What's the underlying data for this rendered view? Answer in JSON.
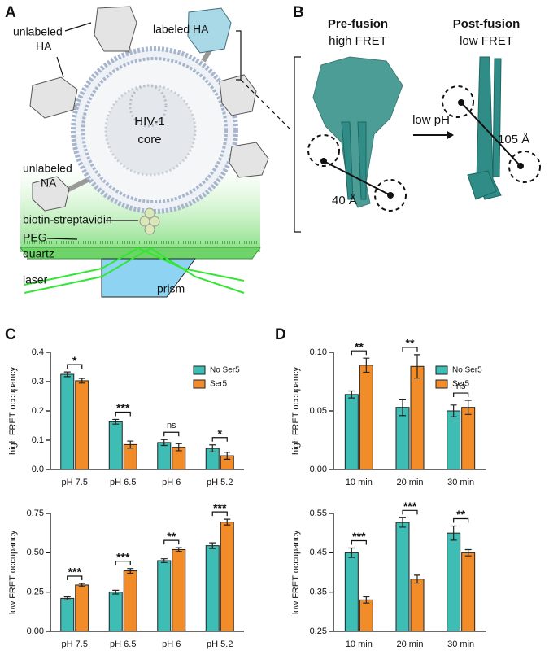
{
  "diagram": {
    "panel_labels": [
      "A",
      "B",
      "C",
      "D"
    ],
    "a": {
      "labeled_ha": "labeled HA",
      "unlabeled_ha": [
        "unlabeled",
        "HA"
      ],
      "core": [
        "HIV-1",
        "core"
      ],
      "unlabeled_na": [
        "unlabeled",
        "NA"
      ],
      "biotin": "biotin-streptavidin",
      "peg": "PEG",
      "quartz": "quartz",
      "laser": "laser",
      "prism": "prism"
    },
    "b": {
      "pre_title": "Pre-fusion",
      "pre_sub": "high FRET",
      "post_title": "Post-fusion",
      "post_sub": "low FRET",
      "pre_distance": "40 Å",
      "condition": "low pH",
      "post_distance": "105 Å"
    }
  },
  "chart_data": [
    {
      "type": "bar",
      "ylabel": "high FRET occupancy",
      "categories": [
        "pH 7.5",
        "pH 6.5",
        "pH 6",
        "pH 5.2"
      ],
      "series": [
        {
          "name": "No Ser5",
          "color": "#3dbdb3",
          "values": [
            0.325,
            0.163,
            0.092,
            0.072
          ],
          "errors": [
            0.008,
            0.008,
            0.01,
            0.012
          ]
        },
        {
          "name": "Ser5",
          "color": "#f28c28",
          "values": [
            0.303,
            0.085,
            0.076,
            0.047
          ],
          "errors": [
            0.008,
            0.012,
            0.012,
            0.012
          ]
        }
      ],
      "ylim": [
        0,
        0.4
      ],
      "yticks": [
        {
          "value": 0,
          "label": "0.0"
        },
        0.1,
        0.2,
        0.3,
        0.4
      ],
      "annotations": [
        "*",
        "***",
        "ns",
        "*"
      ],
      "legend": "upper right"
    },
    {
      "type": "bar",
      "ylabel": "low FRET occupancy",
      "categories": [
        "pH 7.5",
        "pH 6.5",
        "pH 6",
        "pH 5.2"
      ],
      "series": [
        {
          "color": "#3dbdb3",
          "values": [
            0.21,
            0.25,
            0.45,
            0.545
          ],
          "errors": [
            0.01,
            0.012,
            0.012,
            0.018
          ]
        },
        {
          "color": "#f28c28",
          "values": [
            0.295,
            0.385,
            0.52,
            0.695
          ],
          "errors": [
            0.01,
            0.015,
            0.012,
            0.018
          ]
        }
      ],
      "ylim": [
        0,
        0.75
      ],
      "yticks": [
        {
          "value": 0,
          "label": "0.00"
        },
        {
          "value": 0.25,
          "label": "0.25"
        },
        {
          "value": 0.5,
          "label": "0.50"
        },
        {
          "value": 0.75,
          "label": "0.75"
        }
      ],
      "annotations": [
        "***",
        "***",
        "**",
        "***"
      ]
    },
    {
      "type": "bar",
      "ylabel": "high FRET occupancy",
      "categories": [
        "10 min",
        "20 min",
        "30 min"
      ],
      "series": [
        {
          "name": "No Ser5",
          "color": "#3dbdb3",
          "values": [
            0.064,
            0.053,
            0.05
          ],
          "errors": [
            0.003,
            0.007,
            0.005
          ]
        },
        {
          "name": "Ser5",
          "color": "#f28c28",
          "values": [
            0.089,
            0.088,
            0.053
          ],
          "errors": [
            0.006,
            0.01,
            0.006
          ]
        }
      ],
      "ylim": [
        0,
        0.1
      ],
      "yticks": [
        {
          "value": 0,
          "label": "0.00"
        },
        0.05,
        {
          "value": 0.1,
          "label": "0.10"
        }
      ],
      "annotations": [
        "**",
        "**",
        "ns"
      ],
      "legend": "upper right"
    },
    {
      "type": "bar",
      "ylabel": "low FRET occupancy",
      "categories": [
        "10 min",
        "20 min",
        "30 min"
      ],
      "series": [
        {
          "color": "#3dbdb3",
          "values": [
            0.45,
            0.527,
            0.5
          ],
          "errors": [
            0.012,
            0.012,
            0.018
          ]
        },
        {
          "color": "#f28c28",
          "values": [
            0.33,
            0.383,
            0.45
          ],
          "errors": [
            0.008,
            0.01,
            0.008
          ]
        }
      ],
      "ylim": [
        0.25,
        0.55
      ],
      "yticks": [
        0.25,
        0.35,
        0.45,
        0.55
      ],
      "annotations": [
        "***",
        "***",
        "**"
      ]
    }
  ]
}
